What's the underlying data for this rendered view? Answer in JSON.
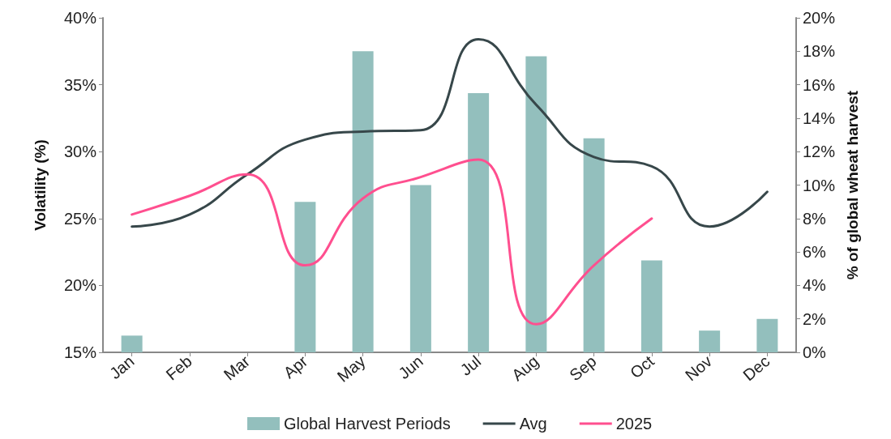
{
  "chart_data": {
    "type": "line",
    "ylabel": "Volatility (%)",
    "y2label": "% of global wheat harvest",
    "categories": [
      "Jan",
      "Feb",
      "Mar",
      "Apr",
      "May",
      "Jun",
      "Jul",
      "Aug",
      "Sep",
      "Oct",
      "Nov",
      "Dec"
    ],
    "series": [
      {
        "name": "Global Harvest Periods",
        "type": "bar",
        "axis": "y2",
        "color": "#93bfbd",
        "values": [
          1,
          0,
          0,
          9,
          18,
          10,
          15.5,
          17.7,
          12.8,
          5.5,
          1.3,
          2
        ]
      },
      {
        "name": "Avg",
        "color": "#37474a",
        "values": [
          24.4,
          25.3,
          28.3,
          30.9,
          31.5,
          31.6,
          38.4,
          33.5,
          29.6,
          28.9,
          24.4,
          27.0
        ]
      },
      {
        "name": "2025",
        "color": "#ff4f8f",
        "values": [
          25.3,
          26.7,
          28.3,
          21.5,
          26.5,
          28.1,
          29.4,
          17.1,
          21.5,
          25.0,
          null,
          null
        ]
      }
    ],
    "ylim": [
      15,
      40
    ],
    "yticks": [
      {
        "value": 15,
        "label": "15%"
      },
      {
        "value": 20,
        "label": "20%"
      },
      {
        "value": 25,
        "label": "25%"
      },
      {
        "value": 30,
        "label": "30%"
      },
      {
        "value": 35,
        "label": "35%"
      },
      {
        "value": 40,
        "label": "40%"
      }
    ],
    "y2lim": [
      0,
      20
    ],
    "y2ticks": [
      {
        "value": 0,
        "label": "0%"
      },
      {
        "value": 2,
        "label": "2%"
      },
      {
        "value": 4,
        "label": "4%"
      },
      {
        "value": 6,
        "label": "6%"
      },
      {
        "value": 8,
        "label": "8%"
      },
      {
        "value": 10,
        "label": "10%"
      },
      {
        "value": 12,
        "label": "12%"
      },
      {
        "value": 14,
        "label": "14%"
      },
      {
        "value": 16,
        "label": "16%"
      },
      {
        "value": 18,
        "label": "18%"
      },
      {
        "value": 20,
        "label": "20%"
      }
    ],
    "grid": false,
    "legend": "bottom",
    "marker": "none",
    "line_style": "solid"
  }
}
